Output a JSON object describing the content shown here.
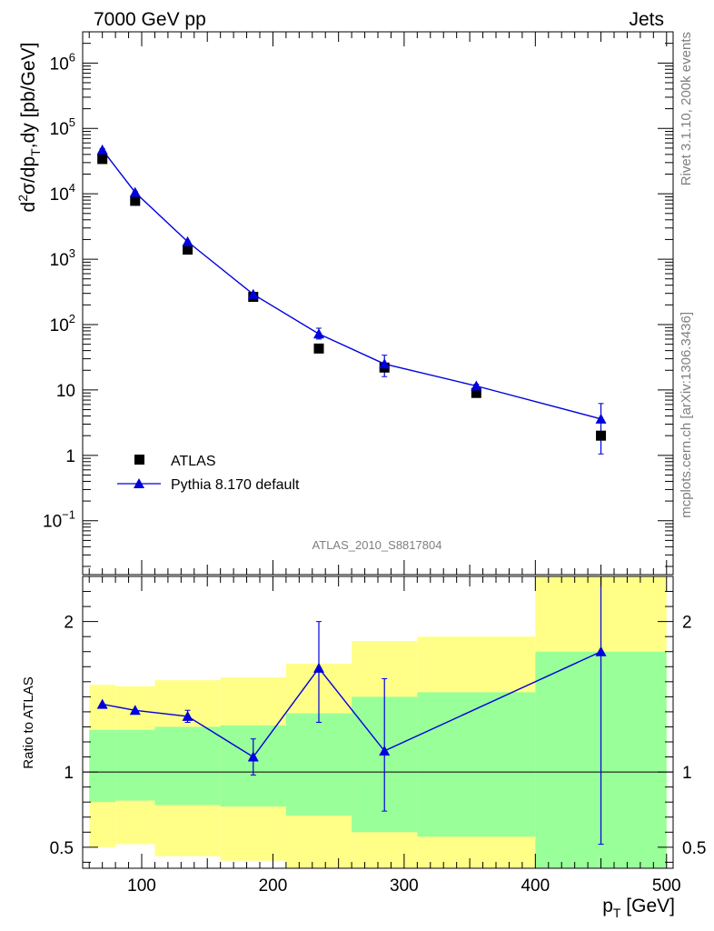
{
  "header": {
    "left": "7000 GeV pp",
    "right": "Jets"
  },
  "side": {
    "rivet": "Rivet 3.1.10,  200k events",
    "mcplots": "mcplots.cern.ch [arXiv:1306.3436]"
  },
  "watermark": "ATLAS_2010_S8817804",
  "legend": {
    "data": "ATLAS",
    "mc": "Pythia 8.170 default"
  },
  "colors": {
    "mc": "#0000dd",
    "band_inner": "#99ff99",
    "band_outer": "#ffff88",
    "data": "#000000"
  },
  "chart_data": [
    {
      "type": "scatter",
      "xlabel": "p_T [GeV]",
      "ylabel": "d²σ/dp_T,dy [pb/GeV]",
      "yscale": "log",
      "ylim": [
        0.015,
        3000000
      ],
      "xlim": [
        55,
        505
      ],
      "yticks": [
        {
          "v": 0.1,
          "b": "10",
          "e": "−1"
        },
        {
          "v": 1,
          "b": "1",
          "e": ""
        },
        {
          "v": 10,
          "b": "10",
          "e": ""
        },
        {
          "v": 100,
          "b": "10",
          "e": "2"
        },
        {
          "v": 1000,
          "b": "10",
          "e": "3"
        },
        {
          "v": 10000,
          "b": "10",
          "e": "4"
        },
        {
          "v": 100000,
          "b": "10",
          "e": "5"
        },
        {
          "v": 1000000,
          "b": "10",
          "e": "6"
        }
      ],
      "series": [
        {
          "name": "ATLAS",
          "x": [
            70,
            95,
            135,
            185,
            235,
            285,
            355,
            450
          ],
          "y": [
            34000,
            7800,
            1400,
            265,
            43,
            22,
            9,
            2
          ]
        },
        {
          "name": "Pythia 8.170 default",
          "x": [
            70,
            95,
            135,
            185,
            235,
            285,
            355,
            450
          ],
          "y": [
            47000,
            10500,
            1850,
            290,
            72,
            25,
            11.5,
            3.6
          ],
          "err_lo": [
            45000,
            10200,
            1800,
            280,
            60,
            16,
            10.8,
            1.05
          ],
          "err_hi": [
            49000,
            10800,
            1900,
            300,
            88,
            34,
            12.2,
            6.2
          ]
        }
      ]
    },
    {
      "type": "line",
      "xlabel": "p_T [GeV]",
      "ylabel": "Ratio to ATLAS",
      "ylim": [
        0.36,
        2.3
      ],
      "xlim": [
        55,
        505
      ],
      "xticks": [
        100,
        200,
        300,
        400,
        500
      ],
      "yticks": [
        {
          "v": 0.5,
          "label": "0.5"
        },
        {
          "v": 1,
          "label": "1"
        },
        {
          "v": 2,
          "label": "2"
        }
      ],
      "bands": [
        {
          "x0": 60,
          "x1": 80,
          "outer": [
            0.5,
            1.58
          ],
          "inner": [
            0.8,
            1.28
          ]
        },
        {
          "x0": 80,
          "x1": 110,
          "outer": [
            0.52,
            1.57
          ],
          "inner": [
            0.81,
            1.28
          ]
        },
        {
          "x0": 110,
          "x1": 160,
          "outer": [
            0.44,
            1.61
          ],
          "inner": [
            0.78,
            1.3
          ]
        },
        {
          "x0": 160,
          "x1": 210,
          "outer": [
            0.41,
            1.63
          ],
          "inner": [
            0.77,
            1.31
          ]
        },
        {
          "x0": 210,
          "x1": 260,
          "outer": [
            0.36,
            1.72
          ],
          "inner": [
            0.71,
            1.39
          ]
        },
        {
          "x0": 260,
          "x1": 310,
          "outer": [
            0.36,
            1.87
          ],
          "inner": [
            0.6,
            1.5
          ]
        },
        {
          "x0": 310,
          "x1": 400,
          "outer": [
            0.36,
            1.9
          ],
          "inner": [
            0.57,
            1.53
          ]
        },
        {
          "x0": 400,
          "x1": 500,
          "outer": [
            0.36,
            2.3
          ],
          "inner": [
            0.36,
            1.8
          ]
        }
      ],
      "series": [
        {
          "name": "Pythia 8.170 default",
          "x": [
            70,
            95,
            135,
            185,
            235,
            285,
            450
          ],
          "y": [
            1.45,
            1.41,
            1.37,
            1.1,
            1.69,
            1.14,
            1.8
          ],
          "err_lo": [
            1.45,
            1.41,
            1.33,
            0.98,
            1.33,
            0.74,
            0.52
          ],
          "err_hi": [
            1.45,
            1.41,
            1.41,
            1.22,
            2.0,
            1.62,
            2.3
          ]
        }
      ]
    }
  ]
}
